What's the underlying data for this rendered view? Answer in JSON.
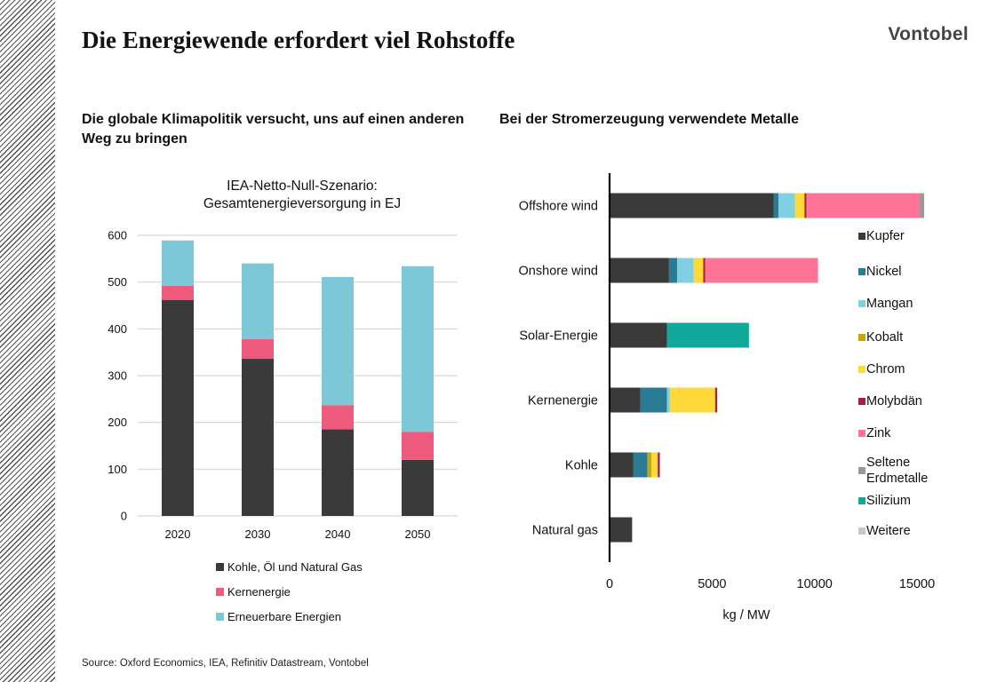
{
  "header": {
    "title": "Die Energiewende erfordert viel Rohstoffe",
    "logo": "Vontobel"
  },
  "left_panel": {
    "heading": "Die globale Klimapolitik versucht, uns auf einen anderen Weg zu bringen"
  },
  "right_panel": {
    "heading": "Bei der Stromerzeugung verwendete Metalle"
  },
  "footer": {
    "source": "Source: Oxford Economics, IEA, Refinitiv Datastream, Vontobel"
  },
  "chart_data": [
    {
      "type": "bar",
      "stacked": true,
      "orientation": "vertical",
      "title": "IEA-Netto-Null-Szenario:",
      "subtitle": "Gesamtenergieversorgung in EJ",
      "categories": [
        "2020",
        "2030",
        "2040",
        "2050"
      ],
      "ylim": [
        0,
        600
      ],
      "yticks": [
        0,
        100,
        200,
        300,
        400,
        500,
        600
      ],
      "grid": true,
      "legend_position": "bottom",
      "series": [
        {
          "name": "Kohle, Öl und Natural Gas",
          "color": "#3a3a3a",
          "values": [
            462,
            336,
            185,
            120
          ]
        },
        {
          "name": "Kernenergie",
          "color": "#ee5b7d",
          "values": [
            30,
            42,
            52,
            60
          ]
        },
        {
          "name": "Erneuerbare Energien",
          "color": "#7cc8d6",
          "values": [
            97,
            162,
            274,
            354
          ]
        }
      ]
    },
    {
      "type": "bar",
      "stacked": true,
      "orientation": "horizontal",
      "categories": [
        "Offshore wind",
        "Onshore wind",
        "Solar-Energie",
        "Kernenergie",
        "Kohle",
        "Natural gas"
      ],
      "xlabel": "kg / MW",
      "xlim": [
        0,
        15000
      ],
      "xticks": [
        0,
        5000,
        10000,
        15000
      ],
      "grid": false,
      "legend_position": "right",
      "series": [
        {
          "name": "Kupfer",
          "color": "#3a3a3a",
          "values": [
            8000,
            2900,
            2800,
            1500,
            1150,
            1100
          ]
        },
        {
          "name": "Nickel",
          "color": "#2a7b96",
          "values": [
            240,
            400,
            0,
            1300,
            700,
            0
          ]
        },
        {
          "name": "Mangan",
          "color": "#7fd0e2",
          "values": [
            800,
            800,
            0,
            150,
            0,
            0
          ]
        },
        {
          "name": "Kobalt",
          "color": "#c9a50a",
          "values": [
            0,
            0,
            0,
            0,
            200,
            0
          ]
        },
        {
          "name": "Chrom",
          "color": "#ffd93a",
          "values": [
            470,
            470,
            0,
            2200,
            300,
            0
          ]
        },
        {
          "name": "Molybdän",
          "color": "#a0244a",
          "values": [
            100,
            100,
            0,
            100,
            100,
            0
          ]
        },
        {
          "name": "Zink",
          "color": "#ff7496",
          "values": [
            5500,
            5500,
            0,
            0,
            0,
            0
          ]
        },
        {
          "name": "Seltene Erdmetalle",
          "color": "#999999",
          "values": [
            240,
            0,
            0,
            0,
            0,
            0
          ]
        },
        {
          "name": "Silizium",
          "color": "#10a898",
          "values": [
            0,
            0,
            4000,
            0,
            0,
            0
          ]
        },
        {
          "name": "Weitere",
          "color": "#c8c8c8",
          "values": [
            0,
            0,
            0,
            0,
            0,
            0
          ]
        }
      ]
    }
  ]
}
